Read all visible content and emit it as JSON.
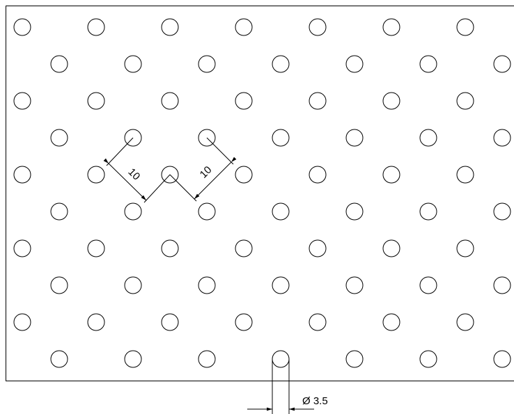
{
  "dimensions": [
    {
      "label": "10"
    },
    {
      "label": "10"
    }
  ],
  "diameter": {
    "label": "Ø 3.5"
  }
}
